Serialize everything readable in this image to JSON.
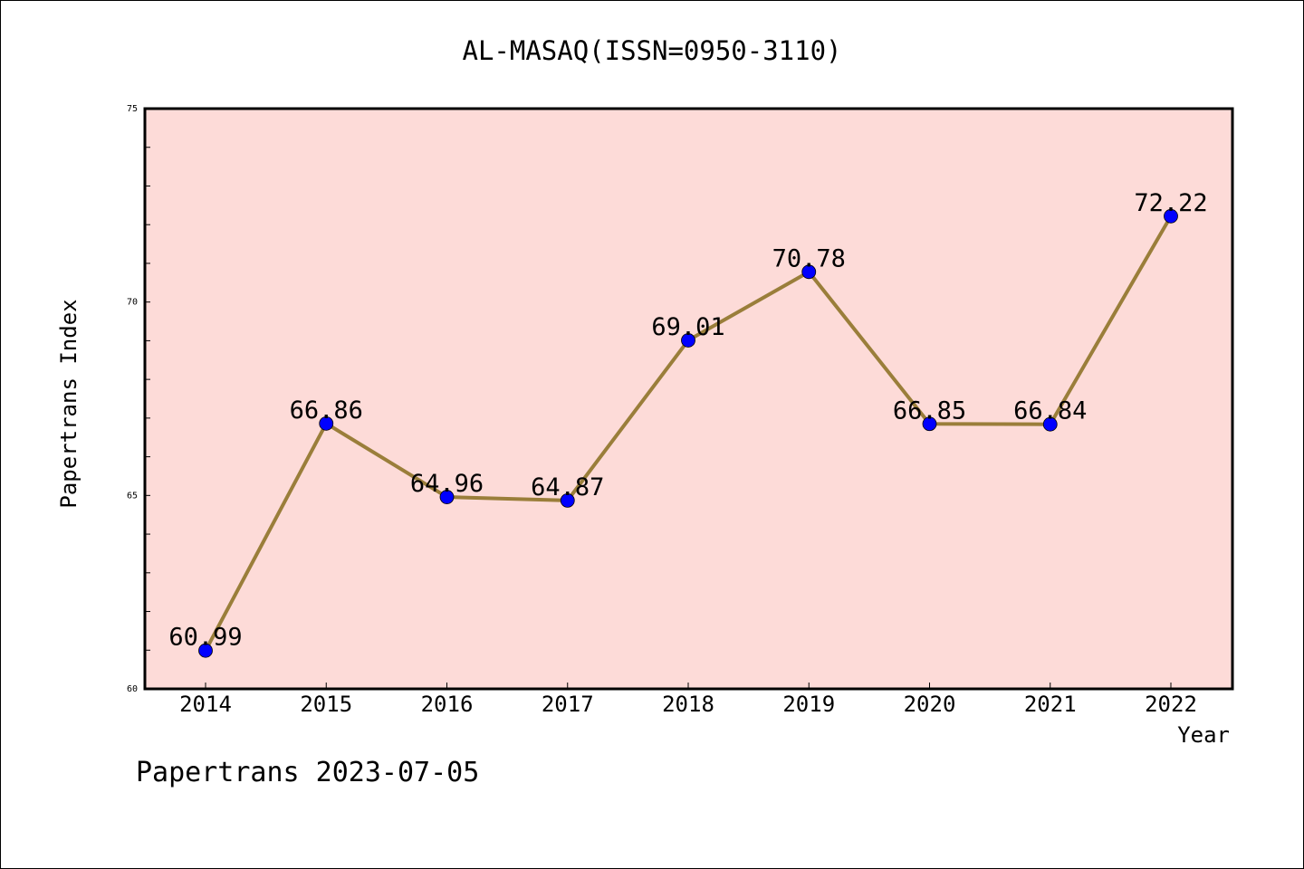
{
  "chart_data": {
    "type": "line",
    "title": "AL-MASAQ(ISSN=0950-3110)",
    "xlabel": "Year",
    "ylabel": "Papertrans Index",
    "categories": [
      "2014",
      "2015",
      "2016",
      "2017",
      "2018",
      "2019",
      "2020",
      "2021",
      "2022"
    ],
    "series": [
      {
        "values": [
          60.99,
          66.86,
          64.96,
          64.87,
          69.01,
          70.78,
          66.85,
          66.84,
          72.22
        ],
        "data_labels": [
          "60.99",
          "66.86",
          "64.96",
          "64.87",
          "69.01",
          "70.78",
          "66.85",
          "66.84",
          "72.22"
        ]
      }
    ],
    "ylim": [
      60,
      75
    ],
    "y_major_ticks": [
      60,
      65,
      70,
      75
    ],
    "y_minor_step": 1,
    "grid": false,
    "legend": "none",
    "colors": {
      "plot_background": "#fddbd8",
      "line": "#9a7e3a",
      "marker": "#0000ff",
      "frame": "#000000"
    }
  },
  "footer": "Papertrans 2023-07-05"
}
